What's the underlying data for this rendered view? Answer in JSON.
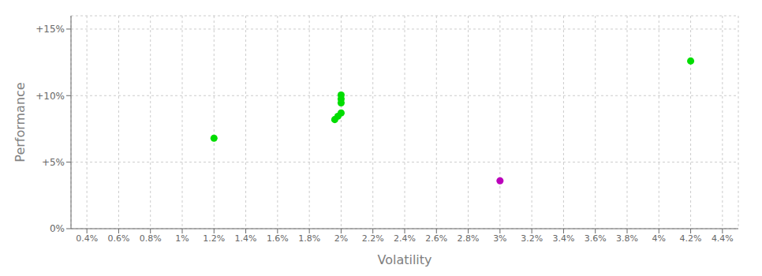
{
  "chart_data": {
    "type": "scatter",
    "xlabel": "Volatility",
    "ylabel": "Performance",
    "grid": true,
    "xlim": [
      0.003,
      0.045
    ],
    "ylim": [
      0.0,
      0.16
    ],
    "xticks": [
      {
        "value": 0.004,
        "label": "0.4%"
      },
      {
        "value": 0.006,
        "label": "0.6%"
      },
      {
        "value": 0.008,
        "label": "0.8%"
      },
      {
        "value": 0.01,
        "label": "1%"
      },
      {
        "value": 0.012,
        "label": "1.2%"
      },
      {
        "value": 0.014,
        "label": "1.4%"
      },
      {
        "value": 0.016,
        "label": "1.6%"
      },
      {
        "value": 0.018,
        "label": "1.8%"
      },
      {
        "value": 0.02,
        "label": "2%"
      },
      {
        "value": 0.022,
        "label": "2.2%"
      },
      {
        "value": 0.024,
        "label": "2.4%"
      },
      {
        "value": 0.026,
        "label": "2.6%"
      },
      {
        "value": 0.028,
        "label": "2.8%"
      },
      {
        "value": 0.03,
        "label": "3%"
      },
      {
        "value": 0.032,
        "label": "3.2%"
      },
      {
        "value": 0.034,
        "label": "3.4%"
      },
      {
        "value": 0.036,
        "label": "3.6%"
      },
      {
        "value": 0.038,
        "label": "3.8%"
      },
      {
        "value": 0.04,
        "label": "4%"
      },
      {
        "value": 0.042,
        "label": "4.2%"
      },
      {
        "value": 0.044,
        "label": "4.4%"
      }
    ],
    "yticks": [
      {
        "value": 0.0,
        "label": "0%"
      },
      {
        "value": 0.05,
        "label": "+5%"
      },
      {
        "value": 0.1,
        "label": "+10%"
      },
      {
        "value": 0.15,
        "label": "+15%"
      }
    ],
    "series": [
      {
        "color": "#00dd00",
        "x": [
          0.02,
          0.02,
          0.02,
          0.02,
          0.0198,
          0.0196,
          0.012,
          0.042
        ],
        "values": [
          0.1005,
          0.0975,
          0.0945,
          0.087,
          0.0845,
          0.082,
          0.068,
          0.126
        ]
      },
      {
        "color": "#bb00bb",
        "x": [
          0.03
        ],
        "values": [
          0.036
        ]
      }
    ]
  }
}
